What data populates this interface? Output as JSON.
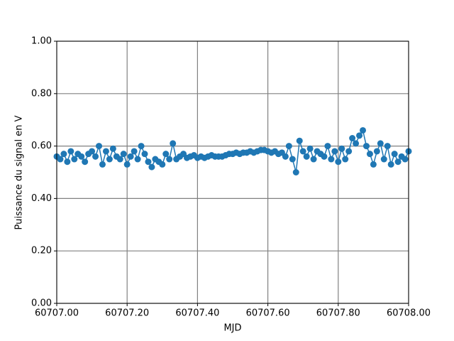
{
  "chart_data": {
    "type": "line",
    "marker": true,
    "xlabel": "MJD",
    "ylabel": "Puissance du signal en V",
    "x": [
      60707.0,
      60707.01,
      60707.02,
      60707.03,
      60707.04,
      60707.05,
      60707.06,
      60707.07,
      60707.08,
      60707.09,
      60707.1,
      60707.11,
      60707.12,
      60707.13,
      60707.14,
      60707.15,
      60707.16,
      60707.17,
      60707.18,
      60707.19,
      60707.2,
      60707.21,
      60707.22,
      60707.23,
      60707.24,
      60707.25,
      60707.26,
      60707.27,
      60707.28,
      60707.29,
      60707.3,
      60707.31,
      60707.32,
      60707.33,
      60707.34,
      60707.35,
      60707.36,
      60707.37,
      60707.38,
      60707.39,
      60707.4,
      60707.41,
      60707.42,
      60707.43,
      60707.44,
      60707.45,
      60707.46,
      60707.47,
      60707.48,
      60707.49,
      60707.5,
      60707.51,
      60707.52,
      60707.53,
      60707.54,
      60707.55,
      60707.56,
      60707.57,
      60707.58,
      60707.59,
      60707.6,
      60707.61,
      60707.62,
      60707.63,
      60707.64,
      60707.65,
      60707.66,
      60707.67,
      60707.68,
      60707.69,
      60707.7,
      60707.71,
      60707.72,
      60707.73,
      60707.74,
      60707.75,
      60707.76,
      60707.77,
      60707.78,
      60707.79,
      60707.8,
      60707.81,
      60707.82,
      60707.83,
      60707.84,
      60707.85,
      60707.86,
      60707.87,
      60707.88,
      60707.89,
      60707.9,
      60707.91,
      60707.92,
      60707.93,
      60707.94,
      60707.95,
      60707.96,
      60707.97,
      60707.98,
      60707.99,
      60708.0
    ],
    "series": [
      {
        "color": "#1f77b4",
        "values": [
          0.56,
          0.55,
          0.57,
          0.54,
          0.58,
          0.55,
          0.57,
          0.56,
          0.54,
          0.57,
          0.58,
          0.56,
          0.6,
          0.53,
          0.58,
          0.55,
          0.59,
          0.56,
          0.55,
          0.57,
          0.53,
          0.56,
          0.58,
          0.55,
          0.6,
          0.57,
          0.54,
          0.52,
          0.55,
          0.54,
          0.53,
          0.57,
          0.55,
          0.61,
          0.55,
          0.56,
          0.57,
          0.555,
          0.56,
          0.565,
          0.555,
          0.56,
          0.555,
          0.56,
          0.565,
          0.56,
          0.56,
          0.56,
          0.565,
          0.57,
          0.57,
          0.575,
          0.57,
          0.575,
          0.575,
          0.58,
          0.575,
          0.58,
          0.585,
          0.585,
          0.58,
          0.575,
          0.58,
          0.57,
          0.575,
          0.56,
          0.6,
          0.55,
          0.5,
          0.62,
          0.58,
          0.56,
          0.59,
          0.55,
          0.58,
          0.57,
          0.56,
          0.6,
          0.55,
          0.58,
          0.54,
          0.59,
          0.55,
          0.58,
          0.63,
          0.61,
          0.64,
          0.66,
          0.6,
          0.57,
          0.53,
          0.58,
          0.61,
          0.55,
          0.6,
          0.53,
          0.57,
          0.54,
          0.56,
          0.55,
          0.58
        ]
      }
    ],
    "xlim": [
      60707.0,
      60708.0
    ],
    "xticks": [
      {
        "value": 60707.0,
        "label": "60707.00"
      },
      {
        "value": 60707.2,
        "label": "60707.20"
      },
      {
        "value": 60707.4,
        "label": "60707.40"
      },
      {
        "value": 60707.6,
        "label": "60707.60"
      },
      {
        "value": 60707.8,
        "label": "60707.80"
      },
      {
        "value": 60708.0,
        "label": "60708.00"
      }
    ],
    "ylim": [
      0,
      1
    ],
    "yticks": [
      {
        "value": 0,
        "label": "0.00"
      },
      {
        "value": 0.2,
        "label": "0.20"
      },
      {
        "value": 0.4,
        "label": "0.40"
      },
      {
        "value": 0.6,
        "label": "0.60"
      },
      {
        "value": 0.8,
        "label": "0.80"
      },
      {
        "value": 1,
        "label": "1.00"
      }
    ],
    "grid": true
  }
}
